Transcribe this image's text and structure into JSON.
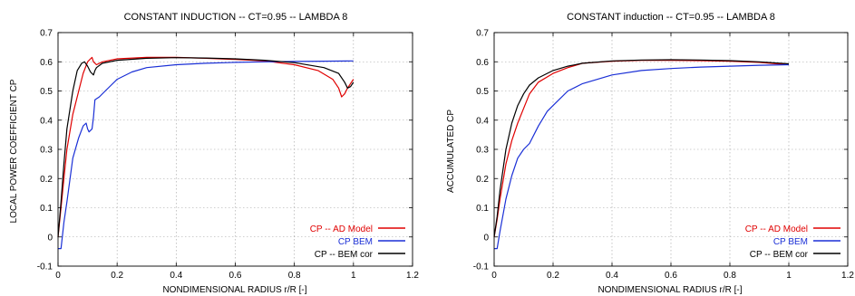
{
  "colors": {
    "ad_model": "#e00000",
    "bem": "#1a2fd6",
    "bem_cor": "#000000",
    "grid": "#a0a0a0",
    "axis": "#000000"
  },
  "chart_data": [
    {
      "type": "line",
      "title": "CONSTANT INDUCTION -- CT=0.95 -- LAMBDA 8",
      "xlabel": "NONDIMENSIONAL RADIUS r/R [-]",
      "ylabel": "LOCAL POWER COEFFICIENT CP",
      "xlim": [
        0,
        1.2
      ],
      "ylim": [
        -0.1,
        0.7
      ],
      "xticks": [
        "0",
        "0.2",
        "0.4",
        "0.6",
        "0.8",
        "1",
        "1.2"
      ],
      "yticks": [
        "-0.1",
        "0",
        "0.1",
        "0.2",
        "0.3",
        "0.4",
        "0.5",
        "0.6",
        "0.7"
      ],
      "grid": true,
      "legend_position": "bottom-right",
      "series": [
        {
          "name": "CP -- AD Model",
          "color_key": "ad_model",
          "points": [
            [
              0,
              0
            ],
            [
              0.01,
              0.1
            ],
            [
              0.02,
              0.2
            ],
            [
              0.03,
              0.3
            ],
            [
              0.05,
              0.42
            ],
            [
              0.07,
              0.5
            ],
            [
              0.085,
              0.56
            ],
            [
              0.1,
              0.6
            ],
            [
              0.11,
              0.61
            ],
            [
              0.115,
              0.615
            ],
            [
              0.12,
              0.6
            ],
            [
              0.13,
              0.59
            ],
            [
              0.15,
              0.6
            ],
            [
              0.2,
              0.61
            ],
            [
              0.3,
              0.615
            ],
            [
              0.4,
              0.615
            ],
            [
              0.5,
              0.612
            ],
            [
              0.6,
              0.608
            ],
            [
              0.7,
              0.603
            ],
            [
              0.8,
              0.59
            ],
            [
              0.88,
              0.57
            ],
            [
              0.93,
              0.54
            ],
            [
              0.95,
              0.51
            ],
            [
              0.96,
              0.48
            ],
            [
              0.97,
              0.49
            ],
            [
              0.98,
              0.51
            ],
            [
              1.0,
              0.54
            ]
          ]
        },
        {
          "name": "CP BEM",
          "color_key": "bem",
          "points": [
            [
              0,
              -0.04
            ],
            [
              0.01,
              -0.04
            ],
            [
              0.02,
              0.05
            ],
            [
              0.03,
              0.12
            ],
            [
              0.05,
              0.27
            ],
            [
              0.07,
              0.34
            ],
            [
              0.085,
              0.38
            ],
            [
              0.095,
              0.39
            ],
            [
              0.1,
              0.37
            ],
            [
              0.105,
              0.36
            ],
            [
              0.115,
              0.37
            ],
            [
              0.12,
              0.41
            ],
            [
              0.125,
              0.47
            ],
            [
              0.14,
              0.48
            ],
            [
              0.16,
              0.5
            ],
            [
              0.18,
              0.52
            ],
            [
              0.2,
              0.54
            ],
            [
              0.25,
              0.565
            ],
            [
              0.3,
              0.58
            ],
            [
              0.4,
              0.59
            ],
            [
              0.5,
              0.595
            ],
            [
              0.6,
              0.598
            ],
            [
              0.7,
              0.6
            ],
            [
              0.8,
              0.601
            ],
            [
              0.9,
              0.602
            ],
            [
              1.0,
              0.603
            ]
          ]
        },
        {
          "name": "CP -- BEM cor",
          "color_key": "bem_cor",
          "points": [
            [
              0,
              0
            ],
            [
              0.01,
              0.12
            ],
            [
              0.02,
              0.25
            ],
            [
              0.03,
              0.37
            ],
            [
              0.05,
              0.5
            ],
            [
              0.065,
              0.57
            ],
            [
              0.08,
              0.595
            ],
            [
              0.09,
              0.6
            ],
            [
              0.1,
              0.585
            ],
            [
              0.11,
              0.565
            ],
            [
              0.12,
              0.555
            ],
            [
              0.125,
              0.57
            ],
            [
              0.13,
              0.58
            ],
            [
              0.15,
              0.595
            ],
            [
              0.2,
              0.605
            ],
            [
              0.3,
              0.612
            ],
            [
              0.4,
              0.614
            ],
            [
              0.5,
              0.613
            ],
            [
              0.6,
              0.61
            ],
            [
              0.7,
              0.605
            ],
            [
              0.8,
              0.597
            ],
            [
              0.9,
              0.58
            ],
            [
              0.95,
              0.56
            ],
            [
              0.97,
              0.53
            ],
            [
              0.98,
              0.51
            ],
            [
              0.99,
              0.515
            ],
            [
              1.0,
              0.53
            ]
          ]
        }
      ]
    },
    {
      "type": "line",
      "title": "CONSTANT induction -- CT=0.95 -- LAMBDA 8",
      "xlabel": "NONDIMENSIONAL RADIUS r/R [-]",
      "ylabel": "ACCUMULATED CP",
      "xlim": [
        0,
        1.2
      ],
      "ylim": [
        -0.1,
        0.7
      ],
      "xticks": [
        "0",
        "0.2",
        "0.4",
        "0.6",
        "0.8",
        "1",
        "1.2"
      ],
      "yticks": [
        "-0.1",
        "0",
        "0.1",
        "0.2",
        "0.3",
        "0.4",
        "0.5",
        "0.6",
        "0.7"
      ],
      "grid": true,
      "legend_position": "bottom-right",
      "series": [
        {
          "name": "CP -- AD Model",
          "color_key": "ad_model",
          "points": [
            [
              0,
              0
            ],
            [
              0.01,
              0.06
            ],
            [
              0.02,
              0.13
            ],
            [
              0.04,
              0.25
            ],
            [
              0.06,
              0.33
            ],
            [
              0.08,
              0.39
            ],
            [
              0.1,
              0.44
            ],
            [
              0.12,
              0.49
            ],
            [
              0.15,
              0.53
            ],
            [
              0.2,
              0.56
            ],
            [
              0.25,
              0.58
            ],
            [
              0.3,
              0.595
            ],
            [
              0.4,
              0.602
            ],
            [
              0.5,
              0.605
            ],
            [
              0.6,
              0.605
            ],
            [
              0.7,
              0.604
            ],
            [
              0.8,
              0.602
            ],
            [
              0.9,
              0.598
            ],
            [
              1.0,
              0.59
            ]
          ]
        },
        {
          "name": "CP BEM",
          "color_key": "bem",
          "points": [
            [
              0,
              -0.04
            ],
            [
              0.01,
              -0.04
            ],
            [
              0.02,
              0.02
            ],
            [
              0.04,
              0.13
            ],
            [
              0.06,
              0.21
            ],
            [
              0.08,
              0.27
            ],
            [
              0.1,
              0.3
            ],
            [
              0.12,
              0.32
            ],
            [
              0.15,
              0.38
            ],
            [
              0.18,
              0.43
            ],
            [
              0.2,
              0.45
            ],
            [
              0.25,
              0.5
            ],
            [
              0.3,
              0.525
            ],
            [
              0.4,
              0.555
            ],
            [
              0.5,
              0.57
            ],
            [
              0.6,
              0.577
            ],
            [
              0.7,
              0.582
            ],
            [
              0.8,
              0.585
            ],
            [
              0.9,
              0.588
            ],
            [
              1.0,
              0.59
            ]
          ]
        },
        {
          "name": "CP -- BEM cor",
          "color_key": "bem_cor",
          "points": [
            [
              0,
              0
            ],
            [
              0.01,
              0.07
            ],
            [
              0.02,
              0.16
            ],
            [
              0.04,
              0.3
            ],
            [
              0.06,
              0.39
            ],
            [
              0.08,
              0.45
            ],
            [
              0.1,
              0.49
            ],
            [
              0.12,
              0.52
            ],
            [
              0.15,
              0.545
            ],
            [
              0.2,
              0.57
            ],
            [
              0.25,
              0.585
            ],
            [
              0.3,
              0.595
            ],
            [
              0.4,
              0.603
            ],
            [
              0.5,
              0.606
            ],
            [
              0.6,
              0.607
            ],
            [
              0.7,
              0.606
            ],
            [
              0.8,
              0.604
            ],
            [
              0.9,
              0.6
            ],
            [
              1.0,
              0.593
            ]
          ]
        }
      ]
    }
  ]
}
